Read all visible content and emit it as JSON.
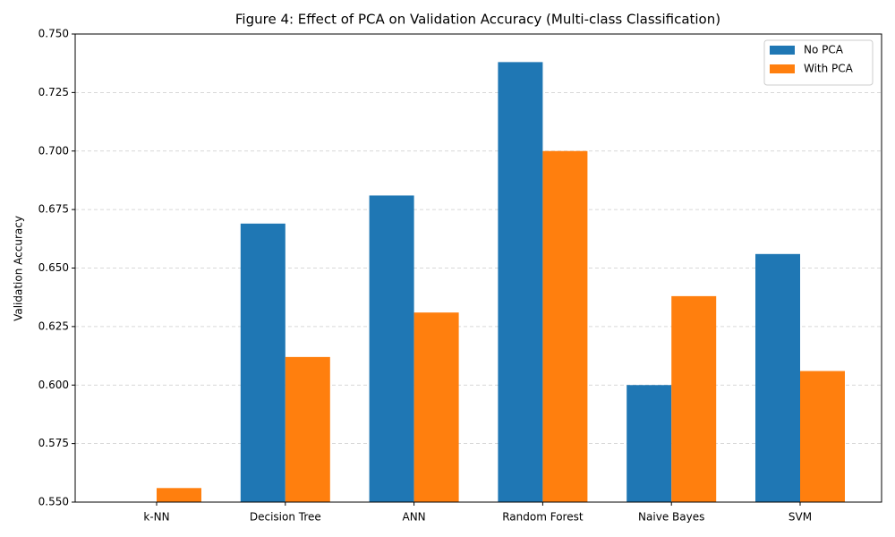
{
  "chart_data": {
    "type": "bar",
    "title": "Figure 4: Effect of PCA on Validation Accuracy (Multi-class Classification)",
    "ylabel": "Validation Accuracy",
    "categories": [
      "k-NN",
      "Decision Tree",
      "ANN",
      "Random Forest",
      "Naive Bayes",
      "SVM"
    ],
    "series": [
      {
        "name": "No PCA",
        "color": "#1f77b4",
        "values": [
          0.55,
          0.669,
          0.681,
          0.738,
          0.6,
          0.656
        ]
      },
      {
        "name": "With PCA",
        "color": "#ff7f0e",
        "values": [
          0.556,
          0.612,
          0.631,
          0.7,
          0.638,
          0.606
        ]
      }
    ],
    "ylim": [
      0.55,
      0.75
    ],
    "yticks": [
      {
        "value": 0.55,
        "label": "0.550"
      },
      {
        "value": 0.575,
        "label": "0.575"
      },
      {
        "value": 0.6,
        "label": "0.600"
      },
      {
        "value": 0.625,
        "label": "0.625"
      },
      {
        "value": 0.65,
        "label": "0.650"
      },
      {
        "value": 0.675,
        "label": "0.675"
      },
      {
        "value": 0.7,
        "label": "0.700"
      },
      {
        "value": 0.725,
        "label": "0.725"
      },
      {
        "value": 0.75,
        "label": "0.750"
      }
    ],
    "grid": true,
    "legend": "upper right"
  }
}
